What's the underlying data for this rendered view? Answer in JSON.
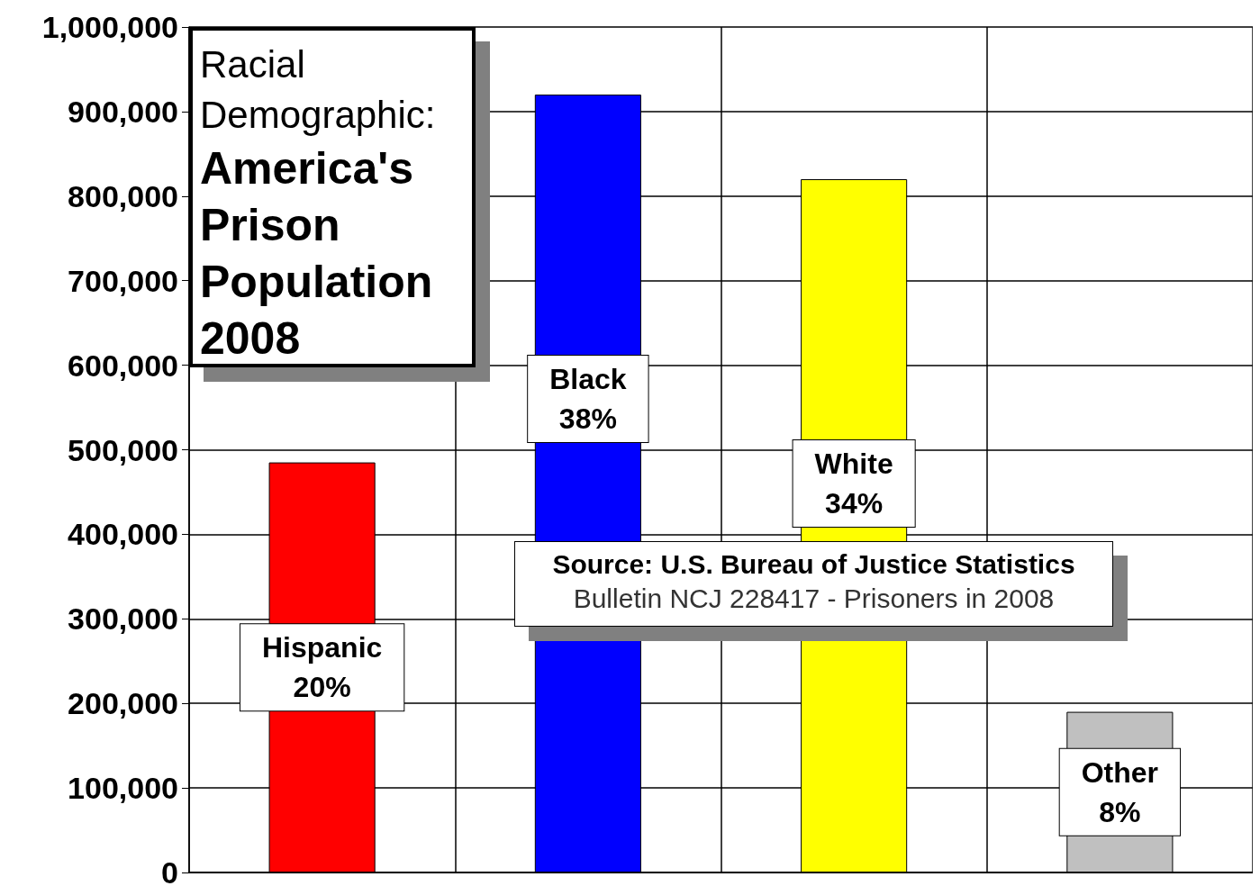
{
  "chart_data": {
    "type": "bar",
    "subtitle": "Racial Demographic:",
    "title": "America's Prison Population 2008",
    "categories": [
      null,
      null,
      null,
      null
    ],
    "values": [
      485000,
      920000,
      820000,
      190000
    ],
    "colors": [
      "#ff0000",
      "#0000ff",
      "#ffff00",
      "#c0c0c0"
    ],
    "value_labels": [
      "Hispanic\n20%",
      "Black\n38%",
      "White\n34%",
      "Other\n8%"
    ],
    "ylim": [
      0,
      1000000
    ],
    "yticks": [
      0,
      {
        "value": 100000,
        "label": "100,000"
      },
      {
        "value": 200000,
        "label": "200,000"
      },
      {
        "value": 300000,
        "label": "300,000"
      },
      {
        "value": 400000,
        "label": "400,000"
      },
      {
        "value": 500000,
        "label": "500,000"
      },
      {
        "value": 600000,
        "label": "600,000"
      },
      {
        "value": 700000,
        "label": "700,000"
      },
      {
        "value": 800000,
        "label": "800,000"
      },
      {
        "value": 900000,
        "label": "900,000"
      },
      {
        "value": 1000000,
        "label": "1,000,000"
      }
    ],
    "grid": true,
    "tick_labels": "y",
    "annotations": [
      "Source: U.S. Bureau of Justice Statistics",
      "Bulletin NCJ 228417 - Prisoners in 2008"
    ]
  }
}
